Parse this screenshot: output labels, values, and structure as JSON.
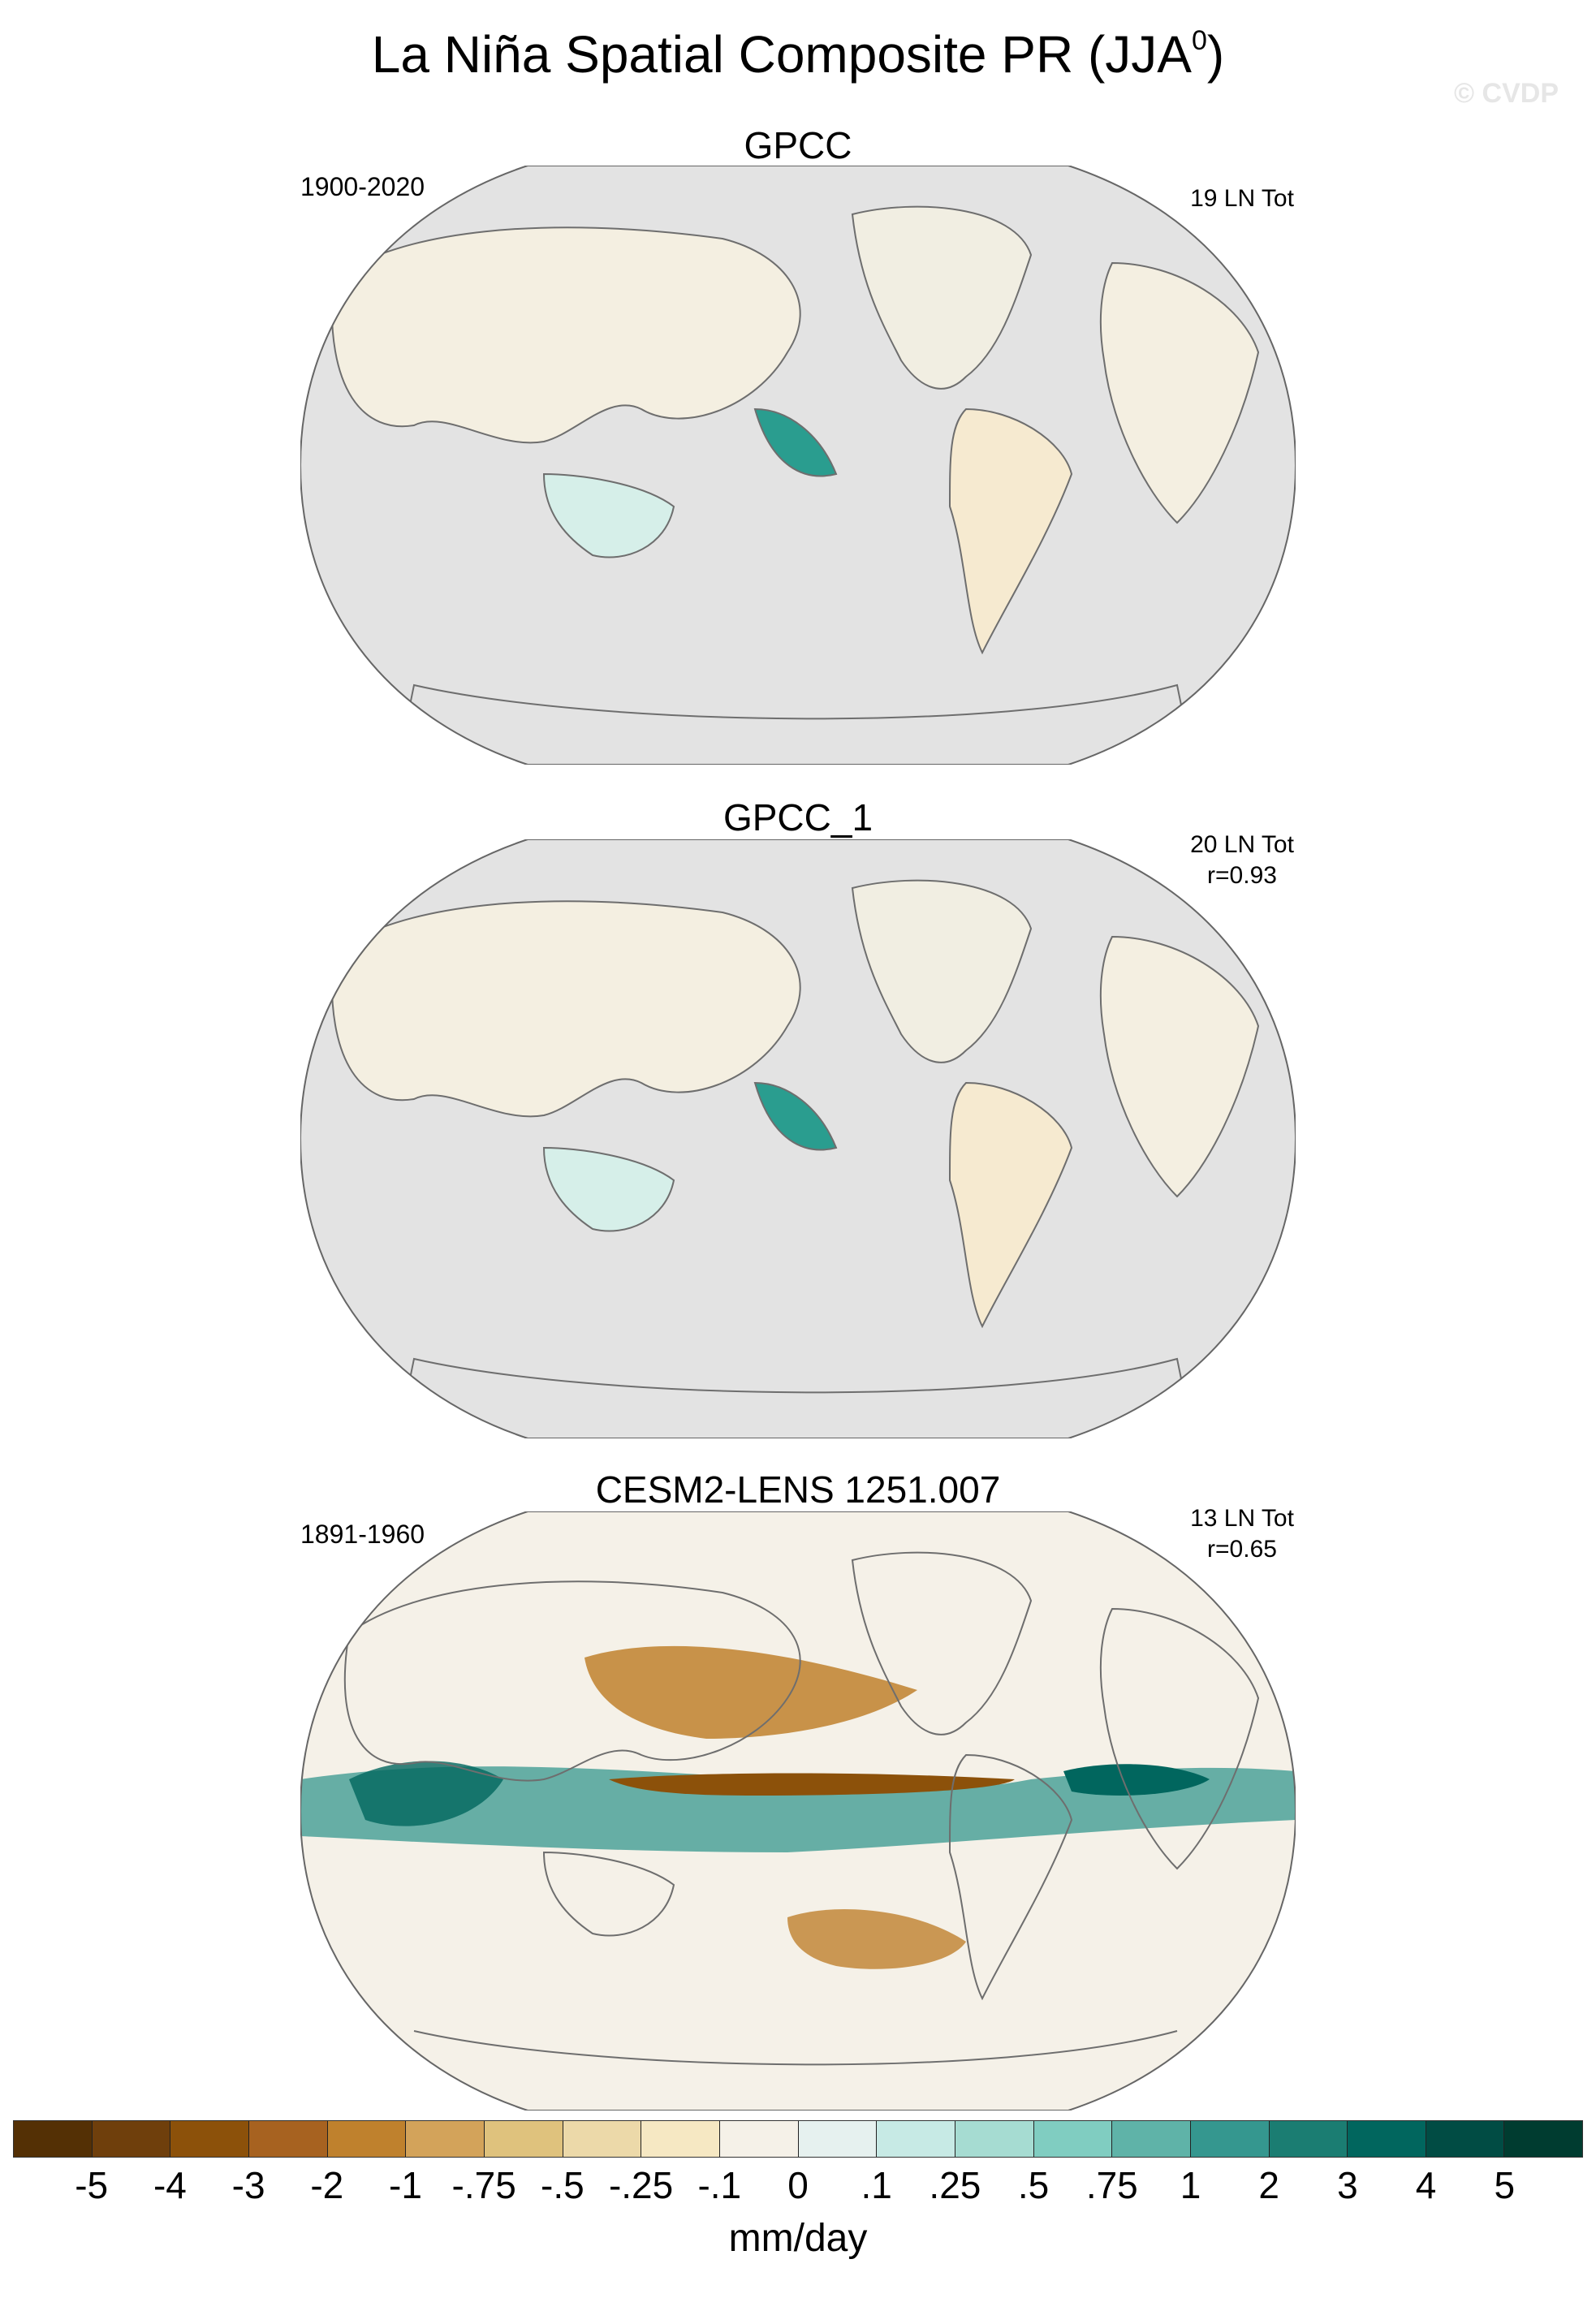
{
  "title": {
    "main": "La Niña Spatial Composite PR (JJA",
    "sup": "0",
    "close": ")"
  },
  "watermark": "© CVDP",
  "panels": [
    {
      "name": "GPCC",
      "left_note": "1900-2020",
      "right_line1": "19 LN Tot",
      "right_line2": ""
    },
    {
      "name": "GPCC_1",
      "left_note": "",
      "right_line1": "20 LN Tot",
      "right_line2": "r=0.93"
    },
    {
      "name": "CESM2-LENS 1251.007",
      "left_note": "1891-1960",
      "right_line1": "13 LN Tot",
      "right_line2": "r=0.65"
    }
  ],
  "colorbar": {
    "units": "mm/day",
    "labels": [
      "-5",
      "-4",
      "-3",
      "-2",
      "-1",
      "-.75",
      "-.5",
      "-.25",
      "-.1",
      "0",
      ".1",
      ".25",
      ".5",
      ".75",
      "1",
      "2",
      "3",
      "4",
      "5"
    ],
    "colors": [
      "#543005",
      "#6f3f0c",
      "#8c510a",
      "#a76220",
      "#bf812d",
      "#d3a35a",
      "#dfc27d",
      "#ecd9a9",
      "#f6e8c3",
      "#f5f1e8",
      "#e6f1ef",
      "#c7eae5",
      "#a6dcd2",
      "#80cdc1",
      "#5fb3a8",
      "#35978f",
      "#1b7d72",
      "#01665e",
      "#014c44",
      "#003c30"
    ]
  },
  "map_style": {
    "land_neutral": "#f4efe1",
    "ocean_missing": "#e3e3e3",
    "coast": "#6e6e6e"
  }
}
